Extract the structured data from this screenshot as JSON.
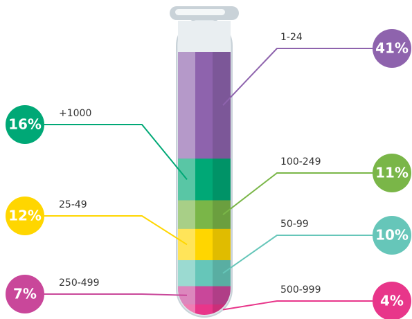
{
  "chart_data": {
    "type": "tube",
    "categories": [
      "1-24",
      "+1000",
      "100-249",
      "25-49",
      "50-99",
      "250-499",
      "500-999"
    ],
    "values": [
      41,
      16,
      11,
      12,
      10,
      7,
      4
    ],
    "value_labels": [
      "41%",
      "16%",
      "11%",
      "12%",
      "10%",
      "7%",
      "4%"
    ],
    "colors": [
      "#8e63ad",
      "#00a876",
      "#7ab648",
      "#ffd600",
      "#66c6b9",
      "#c9479a",
      "#e8368a"
    ]
  }
}
